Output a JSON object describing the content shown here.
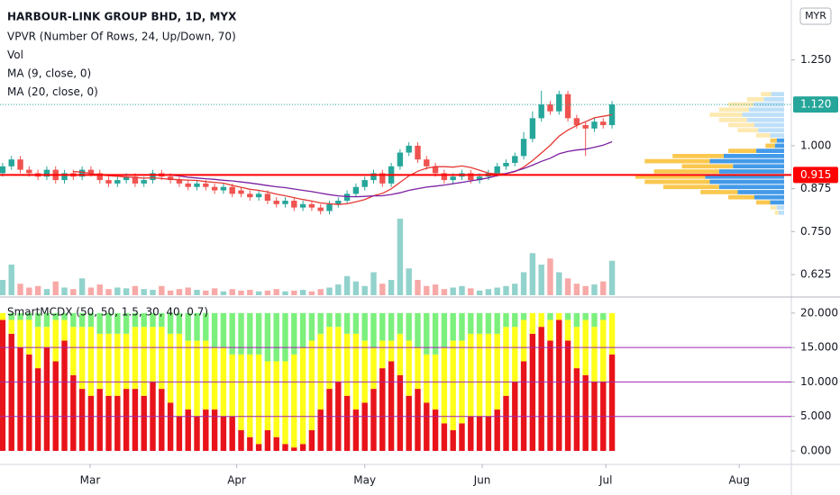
{
  "chart_data": [
    {
      "type": "candlestick",
      "title": "HARBOUR-LINK GROUP BHD, 1D, MYX",
      "legend": [
        "VPVR (Number Of Rows, 24, Up/Down, 70)",
        "Vol"
      ],
      "ma": [
        {
          "name": "MA (9, close, 0)",
          "period": 9,
          "color": "#e53935"
        },
        {
          "name": "MA (20, close, 0)",
          "period": 20,
          "color": "#7b1fa2"
        }
      ],
      "currency": "MYR",
      "up_color": "#26a69a",
      "down_color": "#ef5350",
      "open": [
        0.92,
        0.94,
        0.96,
        0.93,
        0.92,
        0.91,
        0.93,
        0.9,
        0.92,
        0.91,
        0.93,
        0.92,
        0.9,
        0.89,
        0.9,
        0.91,
        0.89,
        0.9,
        0.92,
        0.91,
        0.9,
        0.89,
        0.88,
        0.89,
        0.88,
        0.87,
        0.88,
        0.87,
        0.86,
        0.85,
        0.86,
        0.84,
        0.83,
        0.84,
        0.82,
        0.83,
        0.82,
        0.81,
        0.83,
        0.84,
        0.86,
        0.88,
        0.9,
        0.92,
        0.89,
        0.94,
        0.98,
        1.0,
        0.96,
        0.94,
        0.92,
        0.9,
        0.91,
        0.92,
        0.9,
        0.91,
        0.92,
        0.94,
        0.95,
        0.97,
        1.02,
        1.08,
        1.12,
        1.1,
        1.15,
        1.08,
        1.06,
        1.05,
        1.07,
        1.06
      ],
      "high": [
        0.95,
        0.97,
        0.97,
        0.94,
        0.93,
        0.94,
        0.94,
        0.93,
        0.93,
        0.94,
        0.94,
        0.93,
        0.91,
        0.91,
        0.92,
        0.92,
        0.91,
        0.93,
        0.93,
        0.92,
        0.91,
        0.9,
        0.9,
        0.9,
        0.89,
        0.89,
        0.89,
        0.88,
        0.87,
        0.87,
        0.87,
        0.85,
        0.85,
        0.85,
        0.84,
        0.84,
        0.83,
        0.84,
        0.85,
        0.87,
        0.89,
        0.91,
        0.93,
        0.93,
        0.95,
        0.99,
        1.01,
        1.01,
        0.97,
        0.95,
        0.93,
        0.92,
        0.93,
        0.93,
        0.92,
        0.93,
        0.95,
        0.96,
        0.98,
        1.04,
        1.1,
        1.16,
        1.13,
        1.16,
        1.16,
        1.09,
        1.07,
        1.08,
        1.08,
        1.13
      ],
      "low": [
        0.91,
        0.93,
        0.92,
        0.91,
        0.9,
        0.9,
        0.89,
        0.89,
        0.9,
        0.9,
        0.91,
        0.89,
        0.88,
        0.88,
        0.89,
        0.88,
        0.88,
        0.89,
        0.9,
        0.89,
        0.88,
        0.87,
        0.87,
        0.87,
        0.86,
        0.86,
        0.85,
        0.85,
        0.84,
        0.84,
        0.83,
        0.82,
        0.82,
        0.81,
        0.81,
        0.81,
        0.8,
        0.8,
        0.82,
        0.83,
        0.85,
        0.87,
        0.89,
        0.88,
        0.88,
        0.93,
        0.97,
        0.95,
        0.93,
        0.91,
        0.89,
        0.89,
        0.9,
        0.89,
        0.89,
        0.9,
        0.91,
        0.93,
        0.94,
        0.96,
        1.01,
        1.07,
        1.09,
        1.09,
        1.07,
        1.05,
        0.97,
        1.04,
        1.05,
        1.05
      ],
      "close": [
        0.94,
        0.96,
        0.93,
        0.92,
        0.91,
        0.93,
        0.9,
        0.92,
        0.91,
        0.93,
        0.92,
        0.9,
        0.89,
        0.9,
        0.91,
        0.89,
        0.9,
        0.92,
        0.91,
        0.9,
        0.89,
        0.88,
        0.89,
        0.88,
        0.87,
        0.88,
        0.86,
        0.86,
        0.85,
        0.86,
        0.84,
        0.83,
        0.84,
        0.82,
        0.83,
        0.82,
        0.81,
        0.83,
        0.84,
        0.86,
        0.88,
        0.9,
        0.92,
        0.89,
        0.94,
        0.98,
        1.0,
        0.96,
        0.94,
        0.92,
        0.9,
        0.91,
        0.92,
        0.9,
        0.91,
        0.92,
        0.94,
        0.95,
        0.97,
        1.02,
        1.08,
        1.12,
        1.1,
        1.15,
        1.08,
        1.06,
        1.05,
        1.07,
        1.06,
        1.12
      ],
      "volume": [
        20,
        40,
        15,
        10,
        12,
        8,
        18,
        10,
        8,
        22,
        10,
        14,
        8,
        10,
        9,
        12,
        8,
        7,
        12,
        6,
        8,
        10,
        7,
        6,
        9,
        5,
        8,
        6,
        7,
        5,
        6,
        8,
        5,
        6,
        7,
        5,
        8,
        10,
        14,
        25,
        18,
        12,
        30,
        15,
        20,
        100,
        35,
        20,
        12,
        14,
        8,
        10,
        12,
        9,
        6,
        8,
        10,
        12,
        15,
        30,
        55,
        40,
        48,
        30,
        22,
        15,
        12,
        14,
        18,
        45
      ],
      "vpvr": {
        "prices": [
          0.805,
          0.82,
          0.835,
          0.85,
          0.865,
          0.88,
          0.895,
          0.91,
          0.925,
          0.94,
          0.955,
          0.97,
          0.985,
          1.0,
          1.015,
          1.03,
          1.045,
          1.06,
          1.075,
          1.09,
          1.105,
          1.12,
          1.135,
          1.15
        ],
        "up": [
          6,
          8,
          15,
          32,
          50,
          70,
          80,
          85,
          70,
          55,
          80,
          65,
          30,
          10,
          8,
          15,
          28,
          32,
          40,
          45,
          38,
          33,
          22,
          14
        ],
        "down": [
          4,
          7,
          15,
          28,
          40,
          60,
          70,
          75,
          70,
          55,
          70,
          55,
          30,
          10,
          7,
          15,
          22,
          28,
          30,
          35,
          32,
          27,
          18,
          11
        ],
        "value_area": 70,
        "up_color": "#2f8fe6",
        "down_color": "#f9c23c",
        "up_light": "#b7dcf7",
        "down_light": "#fde7a8"
      },
      "lines": [
        {
          "value": 0.915,
          "label": "0.915",
          "color": "#ff0000"
        }
      ],
      "last": {
        "value": 1.12,
        "label": "1.120",
        "color": "#26a69a"
      },
      "ylim": [
        0.565,
        1.424
      ],
      "yticks": [
        {
          "value": 1.25,
          "label": "1.250"
        },
        {
          "value": 1.0,
          "label": "1.000"
        },
        {
          "value": 0.875,
          "label": "0.875"
        },
        {
          "value": 0.75,
          "label": "0.750"
        },
        {
          "value": 0.625,
          "label": "0.625"
        }
      ],
      "xlim": [
        -0.3,
        89.3
      ],
      "xticks": [
        {
          "value": 9.9,
          "label": "Mar"
        },
        {
          "value": 26.5,
          "label": "Apr"
        },
        {
          "value": 41.0,
          "label": "May"
        },
        {
          "value": 54.3,
          "label": "Jun"
        },
        {
          "value": 68.3,
          "label": "Jul"
        },
        {
          "value": 83.4,
          "label": "Aug"
        }
      ]
    },
    {
      "type": "stacked-bar",
      "title": "SmartMCDX (50, 50, 1.5, 30, 40, 0.7)",
      "series": [
        {
          "color": "#e8141a",
          "values": [
            19,
            17,
            15,
            14,
            12,
            15,
            13,
            16,
            11,
            9,
            8,
            9,
            8,
            8,
            9,
            9,
            8,
            10,
            9,
            7,
            5,
            6,
            5,
            6,
            6,
            5,
            5,
            3,
            2,
            1,
            3,
            2,
            1,
            0.5,
            1,
            3,
            6,
            9,
            10,
            8,
            6,
            7,
            9,
            12,
            13,
            11,
            8,
            9,
            7,
            6,
            4,
            3,
            4,
            5,
            5,
            5,
            6,
            8,
            10,
            13,
            17,
            18,
            16,
            19,
            16,
            12,
            11,
            10,
            10,
            14
          ]
        },
        {
          "color": "#ffff1a",
          "values": [
            1,
            2,
            4,
            5,
            6,
            3,
            6,
            3,
            7,
            9,
            10,
            8,
            9,
            9,
            8,
            9,
            10,
            8,
            9,
            10,
            12,
            10,
            11,
            10,
            9,
            10,
            9,
            11,
            12,
            13,
            10,
            11,
            12,
            13.5,
            14,
            13,
            11,
            9,
            8,
            9,
            11,
            9,
            6,
            4,
            3,
            6,
            8,
            6,
            7,
            8,
            11,
            13,
            12,
            12,
            12,
            12,
            11,
            10,
            8,
            6,
            3,
            2,
            3,
            1,
            3,
            6,
            8,
            8,
            9,
            6
          ]
        },
        {
          "color": "#7cf07c",
          "values": [
            0,
            1,
            1,
            1,
            2,
            2,
            1,
            1,
            2,
            2,
            2,
            3,
            3,
            3,
            3,
            2,
            2,
            2,
            2,
            3,
            3,
            4,
            4,
            4,
            5,
            5,
            6,
            6,
            6,
            6,
            7,
            7,
            7,
            6,
            5,
            4,
            3,
            2,
            2,
            3,
            3,
            4,
            5,
            4,
            4,
            3,
            4,
            5,
            6,
            6,
            5,
            4,
            4,
            3,
            3,
            3,
            3,
            2,
            2,
            1,
            0,
            0,
            1,
            0,
            1,
            2,
            1,
            2,
            1,
            0
          ]
        }
      ],
      "levels": [
        5,
        10,
        15
      ],
      "level_color": "#9c27b0",
      "ylim": [
        -1.96,
        22.2
      ],
      "yticks": [
        {
          "value": 20,
          "label": "20.000"
        },
        {
          "value": 15,
          "label": "15.000"
        },
        {
          "value": 10,
          "label": "10.000"
        },
        {
          "value": 5,
          "label": "5.000"
        },
        {
          "value": 0,
          "label": "0.000"
        }
      ]
    }
  ]
}
